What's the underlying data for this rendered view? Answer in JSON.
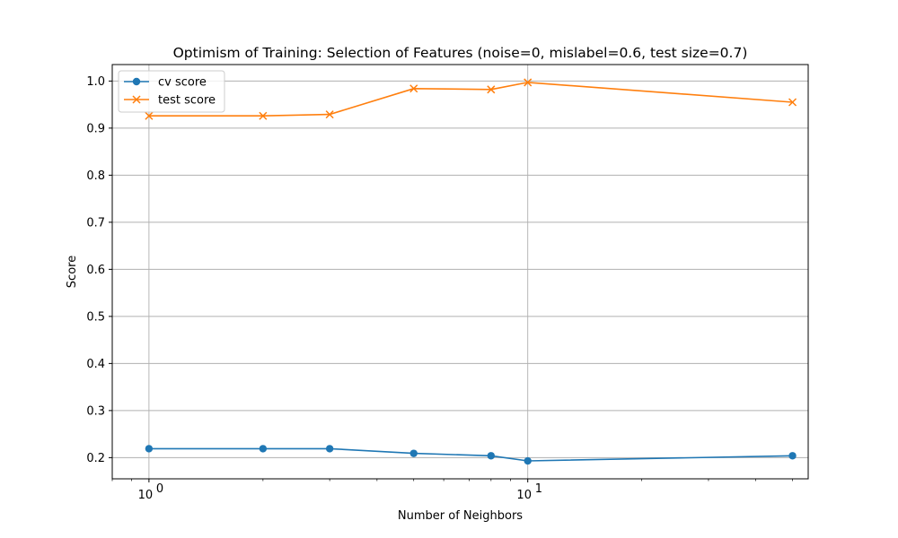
{
  "chart_data": {
    "type": "line",
    "title": "Optimism of Training: Selection of Features (noise=0, mislabel=0.6, test size=0.7)",
    "xlabel": "Number of Neighbors",
    "ylabel": "Score",
    "xscale": "log",
    "xlim": [
      0.8,
      55
    ],
    "ylim": [
      0.155,
      1.035
    ],
    "x": [
      1,
      2,
      3,
      5,
      8,
      10,
      50
    ],
    "x_ticks": [
      {
        "value": 1,
        "base": "10",
        "exp": "0"
      },
      {
        "value": 10,
        "base": "10",
        "exp": "1"
      }
    ],
    "y_ticks": [
      0.2,
      0.3,
      0.4,
      0.5,
      0.6,
      0.7,
      0.8,
      0.9,
      1.0
    ],
    "y_tick_labels": [
      "0.2",
      "0.3",
      "0.4",
      "0.5",
      "0.6",
      "0.7",
      "0.8",
      "0.9",
      "1.0"
    ],
    "grid": true,
    "grid_color": "#b0b0b0",
    "legend_position": "top-left",
    "series": [
      {
        "name": "cv score",
        "values": [
          0.219,
          0.219,
          0.219,
          0.209,
          0.204,
          0.193,
          0.204
        ],
        "color": "#1f77b4",
        "marker": "circle"
      },
      {
        "name": "test score",
        "values": [
          0.926,
          0.926,
          0.929,
          0.984,
          0.982,
          0.997,
          0.955
        ],
        "color": "#ff7f0e",
        "marker": "x"
      }
    ]
  }
}
